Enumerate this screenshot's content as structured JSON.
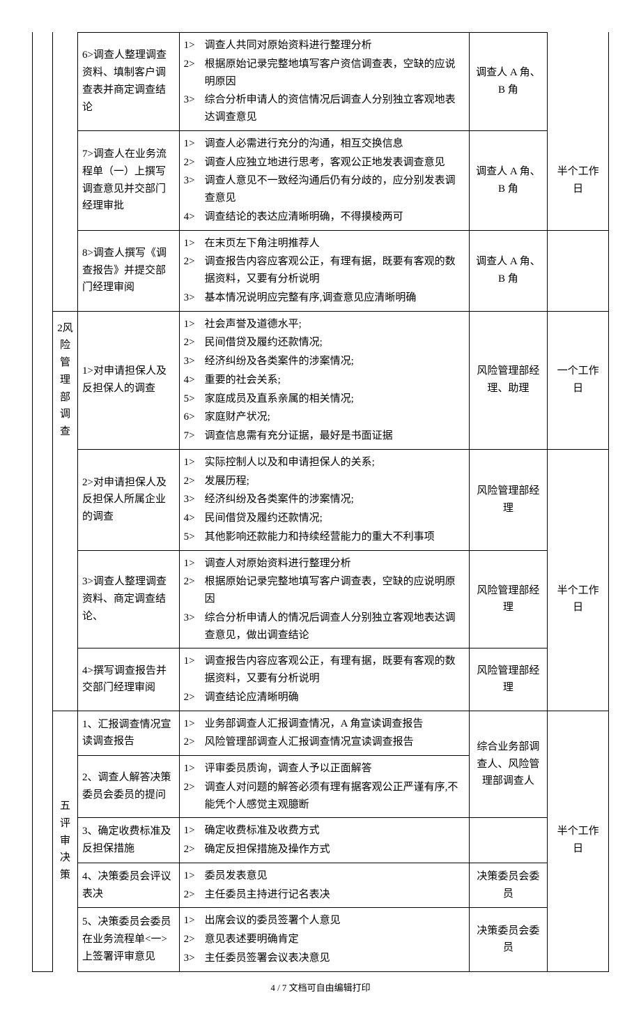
{
  "footer": "4 / 7 文档可自由编辑打印",
  "rows": [
    {
      "gutter": {
        "top": false,
        "bottom": false
      },
      "phase": {
        "text": "",
        "top": false,
        "bottom": false,
        "present": true
      },
      "step": "6>调查人整理调查资料、填制客户调查表并商定调查结论",
      "details": [
        {
          "n": "1>",
          "t": "调查人共同对原始资料进行整理分析"
        },
        {
          "n": "2>",
          "t": "根据原始记录完整地填写客户资信调查表，空缺的应说明原因"
        },
        {
          "n": "3>",
          "t": "综合分析申请人的资信情况后调查人分别独立客观地表达调查意见"
        }
      ],
      "role": "调查人 A 角、B 角",
      "time": {
        "text": "",
        "top": false,
        "bottom": false
      }
    },
    {
      "gutter": {
        "top": false,
        "bottom": false
      },
      "phase": {
        "text": "",
        "top": false,
        "bottom": false,
        "present": true
      },
      "step": "7>调查人在业务流程单（一）上撰写调查意见并交部门经理审批",
      "details": [
        {
          "n": "1>",
          "t": "调查人必需进行充分的沟通，相互交换信息"
        },
        {
          "n": "2>",
          "t": "调查人应独立地进行思考，客观公正地发表调查意见"
        },
        {
          "n": "3>",
          "t": "调查人意见不一致经沟通后仍有分歧的，应分别发表调查意见"
        },
        {
          "n": "4>",
          "t": "调查结论的表达应清晰明确，不得摸棱两可"
        }
      ],
      "role": "调查人 A 角、B 角",
      "time": {
        "text": "半个工作日",
        "top": false,
        "bottom": true
      }
    },
    {
      "gutter": {
        "top": false,
        "bottom": false
      },
      "phase": {
        "text": "",
        "top": false,
        "bottom": true,
        "present": true
      },
      "step": "8>调查人撰写《调查报告》并提交部门经理审阅",
      "details": [
        {
          "n": "1>",
          "t": "在末页左下角注明推荐人"
        },
        {
          "n": "2>",
          "t": "调查报告内容应客观公正，有理有据，既要有客观的数据资料，又要有分析说明"
        },
        {
          "n": "3>",
          "t": "基本情况说明应完整有序,调查意见应清晰明确"
        }
      ],
      "role": "调查人 A 角、B 角",
      "time": {
        "text": "",
        "top": false,
        "bottom": true
      }
    },
    {
      "gutter": {
        "top": false,
        "bottom": false
      },
      "phase": {
        "text": "2风险管理部调查",
        "top": true,
        "bottom": false,
        "present": true,
        "vert": true
      },
      "step": "1>对申请担保人及反担保人的调查",
      "details": [
        {
          "n": "1>",
          "t": "社会声誉及道德水平;"
        },
        {
          "n": "2>",
          "t": "民间借贷及履约还款情况;"
        },
        {
          "n": "3>",
          "t": "经济纠纷及各类案件的涉案情况;"
        },
        {
          "n": "4>",
          "t": "重要的社会关系;"
        },
        {
          "n": "5>",
          "t": "家庭成员及直系亲属的相关情况;"
        },
        {
          "n": "6>",
          "t": "家庭财产状况;"
        },
        {
          "n": "7>",
          "t": "调查信息需有充分证据，最好是书面证据"
        }
      ],
      "role": "风险管理部经理、助理",
      "time": {
        "text": "一个工作日",
        "top": true,
        "bottom": true
      }
    },
    {
      "gutter": {
        "top": false,
        "bottom": false
      },
      "phase": {
        "text": "",
        "top": false,
        "bottom": false,
        "present": true
      },
      "step": "2>对申请担保人及反担保人所属企业的调查",
      "details": [
        {
          "n": "1>",
          "t": "实际控制人以及和申请担保人的关系;"
        },
        {
          "n": "2>",
          "t": "发展历程;"
        },
        {
          "n": "3>",
          "t": "经济纠纷及各类案件的涉案情况;"
        },
        {
          "n": "4>",
          "t": "民间借贷及履约还款情况;"
        },
        {
          "n": "5>",
          "t": "其他影响还款能力和持续经营能力的重大不利事项"
        }
      ],
      "role": "风险管理部经理",
      "time": {
        "text": "",
        "top": false,
        "bottom": false
      }
    },
    {
      "gutter": {
        "top": false,
        "bottom": false
      },
      "phase": {
        "text": "",
        "top": false,
        "bottom": false,
        "present": true
      },
      "step": "3>调查人整理调查资料、商定调查结论、",
      "details": [
        {
          "n": "1>",
          "t": "调查人对原始资料进行整理分析"
        },
        {
          "n": "2>",
          "t": "根据原始记录完整地填写客户调查表，空缺的应说明原因"
        },
        {
          "n": "3>",
          "t": "综合分析申请人的情况后调查人分别独立客观地表达调查意见，做出调查结论"
        }
      ],
      "role": "风险管理部经理",
      "time": {
        "text": "半个工作日",
        "top": true,
        "bottom": false
      }
    },
    {
      "gutter": {
        "top": false,
        "bottom": false
      },
      "phase": {
        "text": "",
        "top": false,
        "bottom": true,
        "present": true
      },
      "step": "4>撰写调查报告并交部门经理审阅",
      "details": [
        {
          "n": "1>",
          "t": "调查报告内容应客观公正，有理有据，既要有客观的数据资料，又要有分析说明"
        },
        {
          "n": "2>",
          "t": "调查结论应清晰明确"
        }
      ],
      "role": "风险管理部经理",
      "time": {
        "text": "",
        "top": false,
        "bottom": true
      }
    },
    {
      "gutter": {
        "top": false,
        "bottom": false
      },
      "phase": {
        "text": "五评审决策",
        "top": true,
        "bottom": false,
        "present": true,
        "vert": true,
        "rowspan": 5
      },
      "step": "1、汇报调查情况宣读调查报告",
      "details": [
        {
          "n": "1>",
          "t": "业务部调查人汇报调查情况，A 角宣读调查报告"
        },
        {
          "n": "2>",
          "t": "风险管理部调查人汇报调查情况宣读调查报告"
        }
      ],
      "role": "综合业务部调查人、风险管理部调查人",
      "role_rowspan": 2,
      "time": {
        "text": "",
        "top": true,
        "bottom": false
      }
    },
    {
      "gutter": {
        "top": false,
        "bottom": false
      },
      "phase": {
        "present": false
      },
      "step": "2、调查人解答决策委员会委员的提问",
      "details": [
        {
          "n": "1>",
          "t": "评审委员质询，调查人予以正面解答"
        },
        {
          "n": "2>",
          "t": "调查人对问题的解答必须有理有据客观公正严谨有序,不能凭个人感觉主观臆断"
        }
      ],
      "role": null,
      "time": {
        "text": "",
        "top": false,
        "bottom": false
      }
    },
    {
      "gutter": {
        "top": false,
        "bottom": false
      },
      "phase": {
        "present": false
      },
      "step": "3、确定收费标准及反担保措施",
      "details": [
        {
          "n": "1>",
          "t": "确定收费标准及收费方式"
        },
        {
          "n": "2>",
          "t": "确定反担保措施及操作方式"
        }
      ],
      "role": "",
      "time": {
        "text": "半个工作日",
        "top": false,
        "bottom": false
      }
    },
    {
      "gutter": {
        "top": false,
        "bottom": false
      },
      "phase": {
        "present": false
      },
      "step": "4、决策委员会评议表决",
      "details": [
        {
          "n": "1>",
          "t": "委员发表意见"
        },
        {
          "n": "2>",
          "t": "主任委员主持进行记名表决"
        }
      ],
      "role": "决策委员会委员",
      "time": {
        "text": "",
        "top": false,
        "bottom": false
      }
    },
    {
      "gutter": {
        "top": false,
        "bottom": true
      },
      "phase": {
        "present": false
      },
      "step": "5、决策委员会委员在业务流程单<一>上签署评审意见",
      "details": [
        {
          "n": "1>",
          "t": "出席会议的委员签署个人意见"
        },
        {
          "n": "2>",
          "t": "意见表述要明确肯定"
        },
        {
          "n": "3>",
          "t": "主任委员签署会议表决意见"
        }
      ],
      "role": "决策委员会委员",
      "time": {
        "text": "",
        "top": false,
        "bottom": true
      }
    }
  ]
}
